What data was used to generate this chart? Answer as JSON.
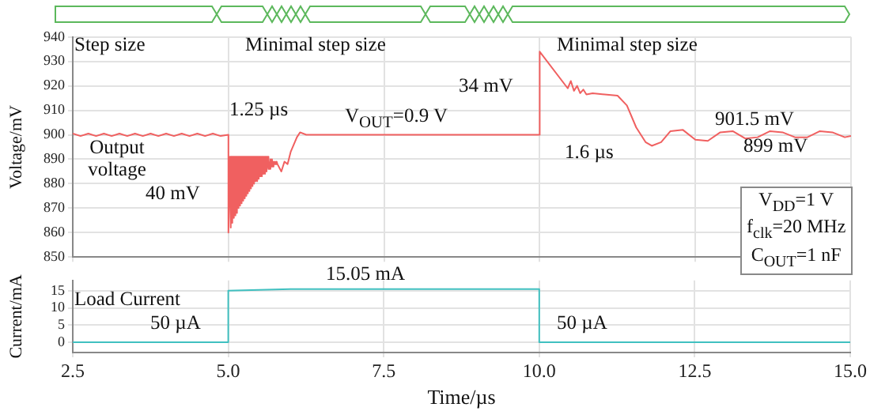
{
  "chart_data": [
    {
      "type": "line",
      "ylabel": "Voltage/mV",
      "xlim": [
        2.5,
        15
      ],
      "xticks": [
        2.5,
        5,
        7.5,
        10,
        12.5,
        15
      ],
      "ylim": [
        850,
        940
      ],
      "yticks": [
        850,
        860,
        870,
        880,
        890,
        900,
        910,
        920,
        930,
        940
      ],
      "grid": true,
      "tick_labels": "y",
      "series": [
        {
          "color": "#f06060",
          "x": [
            2.5,
            2.625,
            2.75,
            2.875,
            3,
            3.125,
            3.25,
            3.375,
            3.5,
            3.625,
            3.75,
            3.875,
            4,
            4.125,
            4.25,
            4.375,
            4.5,
            4.625,
            4.75,
            4.875,
            5.0,
            5.0,
            5.025,
            5.0375,
            5.05,
            5.0625,
            5.075,
            5.0875,
            5.1,
            5.1125,
            5.125,
            5.1375,
            5.15,
            5.1625,
            5.175,
            5.1875,
            5.2,
            5.2125,
            5.225,
            5.2375,
            5.25,
            5.2625,
            5.275,
            5.2875,
            5.3,
            5.3125,
            5.325,
            5.3375,
            5.35,
            5.3625,
            5.375,
            5.3875,
            5.4,
            5.4125,
            5.425,
            5.4375,
            5.45,
            5.4625,
            5.475,
            5.4875,
            5.5,
            5.5125,
            5.525,
            5.5375,
            5.55,
            5.5625,
            5.575,
            5.5875,
            5.6,
            5.6125,
            5.625,
            5.6375,
            5.65,
            5.6625,
            5.675,
            5.6875,
            5.7,
            5.7125,
            5.725,
            5.7375,
            5.75,
            5.7625,
            5.775,
            5.7875,
            5.8,
            5.85,
            5.9,
            5.95,
            6.0,
            6.05,
            6.1,
            6.15,
            6.25,
            10.0,
            10.0,
            10.45,
            10.5,
            10.55,
            10.6,
            10.65,
            10.7,
            10.75,
            10.85,
            11.25,
            11.4,
            11.55,
            11.7,
            11.8,
            11.95,
            12.1,
            12.3,
            12.5,
            12.7,
            12.9,
            13.1,
            13.3,
            13.5,
            13.7,
            13.9,
            14.1,
            14.3,
            14.5,
            14.7,
            14.9,
            15.0
          ],
          "values": [
            900.5,
            899.5,
            900.5,
            899.5,
            900.5,
            899.5,
            900.5,
            899.5,
            900.5,
            899.5,
            900.5,
            899.5,
            900.5,
            899.5,
            900.5,
            899.5,
            900.5,
            899.5,
            900.5,
            899.5,
            900,
            860,
            891,
            862,
            891,
            864,
            891,
            866,
            891,
            867,
            891,
            868,
            891,
            870,
            891,
            871,
            891,
            872,
            891,
            873,
            891,
            874,
            891,
            875,
            891,
            876,
            891,
            877,
            891,
            878,
            891,
            879,
            891,
            880,
            891,
            881,
            891,
            881,
            891,
            882,
            891,
            883,
            891,
            883,
            891,
            884,
            891,
            884,
            891,
            885,
            891,
            886,
            890,
            886,
            890,
            887,
            890,
            887,
            889,
            888,
            889,
            888,
            889,
            888,
            888,
            885,
            889,
            888,
            893,
            896,
            899,
            901,
            900,
            900,
            934,
            919,
            922,
            918,
            920,
            917,
            918.5,
            916.5,
            917,
            916,
            912,
            903,
            897,
            895.5,
            897,
            901.5,
            902,
            898,
            897.5,
            901,
            901.5,
            898.5,
            899,
            901.5,
            901,
            899,
            899,
            901.5,
            901,
            899,
            899.5
          ]
        }
      ],
      "annotations": [
        "Step size",
        "Minimal step size",
        "Minimal step size",
        "1.25 µs",
        "V$_{OUT}$=0.9 V",
        "Output voltage",
        "40 mV",
        "34 mV",
        "1.6 µs",
        "901.5 mV",
        "899 mV",
        "V$_{DD}$=1 V",
        "f$_{clk}$=20 MHz",
        "C$_{OUT}$=1 nF"
      ]
    },
    {
      "type": "line",
      "xlabel": "Time/µs",
      "ylabel": "Current/mA",
      "xlim": [
        2.5,
        15
      ],
      "xticks": [
        2.5,
        {
          "value": 5,
          "label": "5.0"
        },
        7.5,
        {
          "value": 10,
          "label": "10.0"
        },
        12.5,
        {
          "value": 15,
          "label": "15.0"
        }
      ],
      "ylim": [
        -3,
        18
      ],
      "yticks": [
        0,
        5,
        10,
        15
      ],
      "grid": true,
      "series": [
        {
          "color": "#40c0c0",
          "x": [
            2.5,
            5.0,
            5.0,
            6.0,
            10.0,
            10.0,
            15.0
          ],
          "values": [
            0,
            0,
            15,
            15.5,
            15.5,
            0,
            0
          ]
        }
      ],
      "annotations": [
        "Load Current",
        "50 µA",
        "15.05 mA",
        "50 µA"
      ]
    }
  ]
}
